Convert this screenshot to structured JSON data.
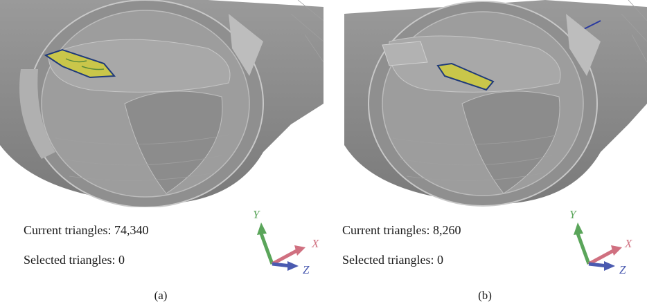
{
  "panels": [
    {
      "id": "a",
      "current_triangles_label": "Current triangles: 74,340",
      "selected_triangles_label": "Selected triangles: 0",
      "caption": "(a)",
      "axes": {
        "y": "Y",
        "x": "X",
        "z": "Z"
      }
    },
    {
      "id": "b",
      "current_triangles_label": "Current triangles: 8,260",
      "selected_triangles_label": "Selected triangles: 0",
      "caption": "(b)",
      "axes": {
        "y": "Y",
        "x": "X",
        "z": "Z"
      }
    }
  ],
  "colors": {
    "mesh_gray": "#8a8a8a",
    "mesh_light": "#b5b5b5",
    "selection_yellow": "#c9c64a",
    "axis_y": "#5aa55a",
    "axis_x": "#d07080",
    "axis_z": "#4a5ab0"
  }
}
